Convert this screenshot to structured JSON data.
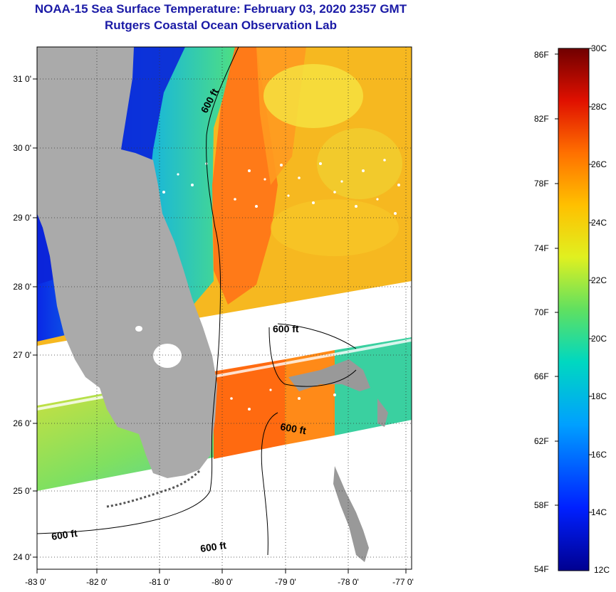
{
  "header": {
    "title": "NOAA-15 Sea Surface Temperature:  February 03, 2020 2357 GMT",
    "subtitle": "Rutgers Coastal Ocean Observation Lab"
  },
  "axes": {
    "lat_ticks": [
      "31 0'",
      "30 0'",
      "29 0'",
      "28 0'",
      "27 0'",
      "26 0'",
      "25 0'",
      "24 0'"
    ],
    "lon_ticks": [
      "-83 0'",
      "-82 0'",
      "-81 0'",
      "-80 0'",
      "-79 0'",
      "-78 0'",
      "-77 0'"
    ]
  },
  "contour": {
    "label": "600 ft",
    "labels": [
      "600 ft",
      "600 ft",
      "600 ft",
      "600 ft",
      "600 ft"
    ]
  },
  "colorbar": {
    "fahrenheit": [
      "86F",
      "82F",
      "78F",
      "74F",
      "70F",
      "66F",
      "62F",
      "58F",
      "54F"
    ],
    "celsius": [
      "30C",
      "28C",
      "26C",
      "24C",
      "22C",
      "20C",
      "18C",
      "16C",
      "14C",
      "12C"
    ]
  },
  "colors": {
    "title": "#1a1aa6",
    "land": "#aaaaaa",
    "no_data": "#ffffff",
    "warm": "#ff6a10",
    "cool": "#1a2fe0"
  }
}
